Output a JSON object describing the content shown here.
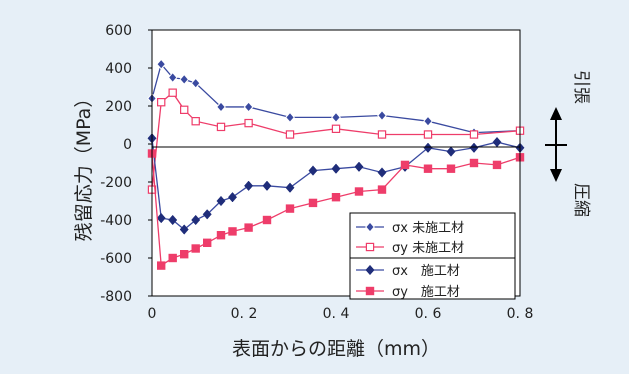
{
  "colors": {
    "panel": "#e6eff7",
    "plot_bg": "#ffffff",
    "untreated": "#3a4aa0",
    "treated": "#ee3d6a"
  },
  "chart_data": {
    "type": "line",
    "xlabel": "表面からの距離（mm）",
    "ylabel": "残留応力（MPa）",
    "xlim": [
      0,
      0.8
    ],
    "ylim": [
      -800,
      600
    ],
    "x_ticks": [
      "0",
      "0. 2",
      "0. 4",
      "0. 6",
      "0. 8"
    ],
    "y_ticks": [
      "600",
      "400",
      "200",
      "0",
      "-200",
      "-400",
      "-600",
      "-800"
    ],
    "grid": false,
    "legend_position": "bottom-right",
    "right_annotation": {
      "tension": "引張",
      "compression": "圧縮"
    },
    "series": [
      {
        "name": "σx 未施工材",
        "marker": "diamond-outline",
        "x": [
          0,
          0.02,
          0.045,
          0.07,
          0.095,
          0.15,
          0.21,
          0.3,
          0.4,
          0.5,
          0.6,
          0.7,
          0.8
        ],
        "y": [
          240,
          420,
          350,
          340,
          320,
          195,
          195,
          140,
          140,
          150,
          120,
          60,
          70
        ]
      },
      {
        "name": "σy 未施工材",
        "marker": "square-outline",
        "x": [
          0,
          0.02,
          0.045,
          0.07,
          0.095,
          0.15,
          0.21,
          0.3,
          0.4,
          0.5,
          0.6,
          0.7,
          0.8
        ],
        "y": [
          -240,
          220,
          270,
          180,
          120,
          90,
          110,
          50,
          80,
          50,
          50,
          50,
          70
        ]
      },
      {
        "name": "σx　施工材",
        "marker": "diamond-filled",
        "x": [
          0,
          0.02,
          0.045,
          0.07,
          0.095,
          0.12,
          0.15,
          0.175,
          0.21,
          0.25,
          0.3,
          0.35,
          0.4,
          0.45,
          0.5,
          0.55,
          0.6,
          0.65,
          0.7,
          0.75,
          0.8
        ],
        "y": [
          30,
          -390,
          -400,
          -450,
          -400,
          -370,
          -300,
          -280,
          -220,
          -220,
          -230,
          -140,
          -130,
          -120,
          -150,
          -120,
          -20,
          -40,
          -20,
          10,
          -20
        ]
      },
      {
        "name": "σy　施工材",
        "marker": "square-filled",
        "x": [
          0,
          0.02,
          0.045,
          0.07,
          0.095,
          0.12,
          0.15,
          0.175,
          0.21,
          0.25,
          0.3,
          0.35,
          0.4,
          0.45,
          0.5,
          0.55,
          0.6,
          0.65,
          0.7,
          0.75,
          0.8
        ],
        "y": [
          -50,
          -640,
          -600,
          -580,
          -550,
          -520,
          -480,
          -460,
          -440,
          -400,
          -340,
          -310,
          -280,
          -250,
          -240,
          -110,
          -130,
          -130,
          -100,
          -110,
          -70
        ]
      }
    ]
  }
}
